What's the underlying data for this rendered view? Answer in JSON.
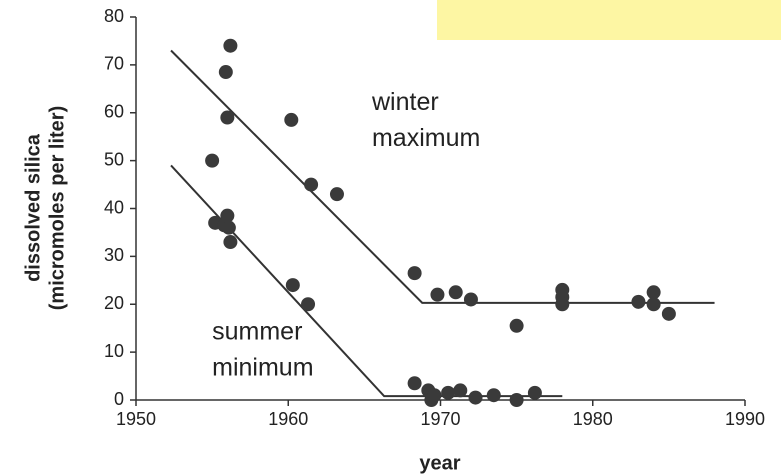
{
  "chart_data": {
    "type": "scatter",
    "x_label": "year",
    "y_label": [
      "dissolved silica",
      "(micromoles per liter)"
    ],
    "xlim": [
      1950,
      1990
    ],
    "ylim": [
      0,
      80
    ],
    "xticks": [
      1950,
      1960,
      1970,
      1980,
      1990
    ],
    "yticks": [
      0,
      10,
      20,
      30,
      40,
      50,
      60,
      70,
      80
    ],
    "series": [
      {
        "color": "#3a3a3a",
        "x": [
          1956.2,
          1955.9,
          1956,
          1960.2,
          1961.5,
          1963.2,
          1968.3,
          1969.8,
          1971,
          1972,
          1975,
          1978,
          1978,
          1978,
          1983,
          1984,
          1984,
          1985
        ],
        "values": [
          74,
          68.5,
          59,
          58.5,
          45,
          43,
          26.5,
          22,
          22.5,
          21,
          15.5,
          23,
          21.5,
          20,
          20.5,
          22.5,
          20,
          18
        ]
      },
      {
        "color": "#3a3a3a",
        "x": [
          1955,
          1955.2,
          1955.8,
          1956,
          1956.1,
          1956.2,
          1960.3,
          1961.3,
          1968.3,
          1969.2,
          1969.4,
          1969.6,
          1970.5,
          1971.3,
          1972.3,
          1973.5,
          1975,
          1976.2
        ],
        "values": [
          50,
          37,
          36.5,
          38.5,
          36,
          33,
          24,
          20,
          3.5,
          2,
          0,
          1,
          1.5,
          2,
          0.5,
          1,
          0,
          1.5
        ]
      }
    ],
    "trend_lines": [
      {
        "color": "#333333",
        "x": [
          1952.3,
          1968.8,
          1988
        ],
        "values": [
          73,
          20.3,
          20.3
        ]
      },
      {
        "color": "#333333",
        "x": [
          1952.3,
          1966.3,
          1978
        ],
        "values": [
          49,
          0.8,
          0.8
        ]
      }
    ],
    "annotations": [
      {
        "lines": [
          "winter",
          "maximum"
        ],
        "x": 1965.5,
        "y": 62
      },
      {
        "lines": [
          "summer",
          "minimum"
        ],
        "x": 1955,
        "y": 14
      }
    ]
  }
}
